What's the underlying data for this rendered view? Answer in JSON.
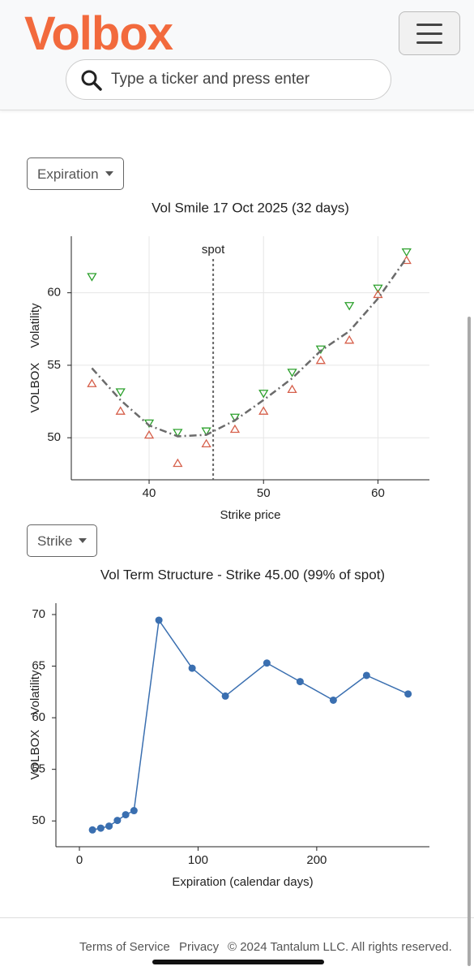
{
  "header": {
    "logo": "Volbox",
    "search_placeholder": "Type a ticker and press enter"
  },
  "controls": [
    "Expiration",
    "Strike"
  ],
  "chart_data": [
    {
      "type": "scatter",
      "title": "Vol Smile 17 Oct 2025 (32 days)",
      "xlabel": "Strike price",
      "ylabel": "VOLBOX Volatility",
      "x": [
        35,
        37.5,
        40,
        42.5,
        45,
        47.5,
        50,
        52.5,
        55,
        57.5,
        60,
        62.5
      ],
      "series": [
        {
          "color": "#2ca02c",
          "marker": "triangle-down",
          "values": [
            61.1,
            53.15,
            51.0,
            50.35,
            50.45,
            51.4,
            53.05,
            54.5,
            56.1,
            59.1,
            60.3,
            62.8
          ]
        },
        {
          "color": "#d65f4a",
          "marker": "triangle-up",
          "values": [
            53.75,
            51.85,
            50.2,
            48.25,
            49.6,
            50.6,
            51.85,
            53.35,
            55.35,
            56.75,
            59.9,
            62.25
          ]
        },
        {
          "color": "#6b6b6b",
          "marker": "dashdot-line",
          "values": [
            54.8,
            52.6,
            50.85,
            50.1,
            50.2,
            51.2,
            52.6,
            54.1,
            56.0,
            57.35,
            59.6,
            62.4
          ]
        }
      ],
      "annotation": {
        "text": "spot",
        "x": 45.6
      },
      "xlim": [
        33.2,
        64.5
      ],
      "ylim": [
        47.1,
        63.9
      ],
      "xticks": [
        40,
        50,
        60
      ],
      "yticks": [
        50,
        55,
        60
      ],
      "grid": true
    },
    {
      "type": "line",
      "title": "Vol Term Structure - Strike 45.00 (99% of spot)",
      "xlabel": "Expiration (calendar days)",
      "ylabel": "VOLBOX Volatility",
      "x": [
        11,
        18,
        25,
        32,
        39,
        46,
        67,
        95,
        123,
        158,
        186,
        214,
        242,
        277
      ],
      "series": [
        {
          "color": "#3a6fb0",
          "marker": "circle",
          "values": [
            49.13,
            49.3,
            49.5,
            50.05,
            50.6,
            51.0,
            69.45,
            64.8,
            62.1,
            65.3,
            63.5,
            61.7,
            64.1,
            62.3
          ]
        }
      ],
      "xlim": [
        -19.8,
        295
      ],
      "ylim": [
        47.5,
        71.1
      ],
      "xticks": [
        0,
        100,
        200
      ],
      "yticks": [
        50,
        55,
        60,
        65,
        70
      ],
      "grid": false
    }
  ],
  "footer": {
    "links": [
      "Terms of Service",
      "Privacy"
    ],
    "copyright": "© 2024 Tantalum LLC. All rights reserved."
  }
}
